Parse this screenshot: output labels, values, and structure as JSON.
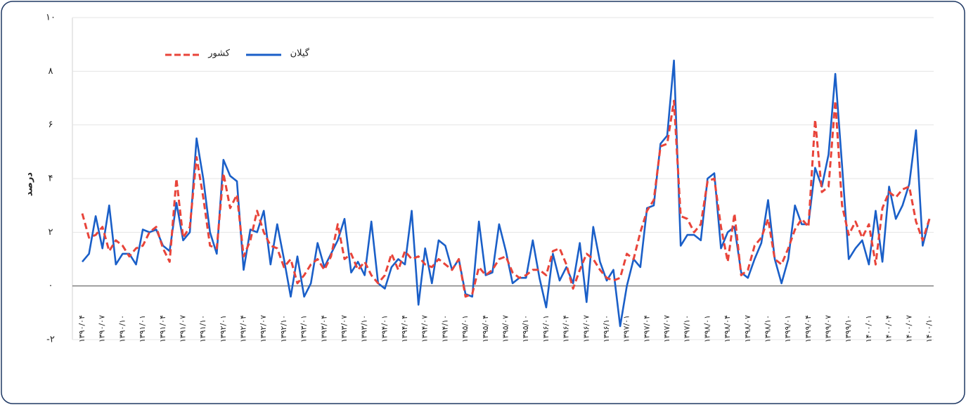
{
  "chart_data": {
    "type": "line",
    "ylabel": "درصد",
    "ylim": [
      -2,
      10
    ],
    "yticks": [
      {
        "value": -2,
        "label": "-۲"
      },
      {
        "value": 0,
        "label": "۰"
      },
      {
        "value": 2,
        "label": "۲"
      },
      {
        "value": 4,
        "label": "۴"
      },
      {
        "value": 6,
        "label": "۶"
      },
      {
        "value": 8,
        "label": "۸"
      },
      {
        "value": 10,
        "label": "۱۰"
      }
    ],
    "grid": true,
    "categories": [
      "۱۳۹۰/۰۴",
      null,
      null,
      "۱۳۹۰/۰۷",
      null,
      null,
      "۱۳۹۰/۱۰",
      null,
      null,
      "۱۳۹۱/۰۱",
      null,
      null,
      "۱۳۹۱/۰۴",
      null,
      null,
      "۱۳۹۱/۰۷",
      null,
      null,
      "۱۳۹۱/۱۰",
      null,
      null,
      "۱۳۹۲/۰۱",
      null,
      null,
      "۱۳۹۲/۰۴",
      null,
      null,
      "۱۳۹۲/۰۷",
      null,
      null,
      "۱۳۹۲/۱۰",
      null,
      null,
      "۱۳۹۳/۰۱",
      null,
      null,
      "۱۳۹۳/۰۴",
      null,
      null,
      "۱۳۹۳/۰۷",
      null,
      null,
      "۱۳۹۳/۱۰",
      null,
      null,
      "۱۳۹۴/۰۱",
      null,
      null,
      "۱۳۹۴/۰۴",
      null,
      null,
      "۱۳۹۴/۰۷",
      null,
      null,
      "۱۳۹۴/۱۰",
      null,
      null,
      "۱۳۹۵/۰۱",
      null,
      null,
      "۱۳۹۵/۰۴",
      null,
      null,
      "۱۳۹۵/۰۷",
      null,
      null,
      "۱۳۹۵/۱۰",
      null,
      null,
      "۱۳۹۶/۰۱",
      null,
      null,
      "۱۳۹۶/۰۴",
      null,
      null,
      "۱۳۹۶/۰۷",
      null,
      null,
      "۱۳۹۶/۱۰",
      null,
      null,
      "۱۳۹۷/۰۱",
      null,
      null,
      "۱۳۹۷/۰۴",
      null,
      null,
      "۱۳۹۷/۰۷",
      null,
      null,
      "۱۳۹۷/۱۰",
      null,
      null,
      "۱۳۹۸/۰۱",
      null,
      null,
      "۱۳۹۸/۰۴",
      null,
      null,
      "۱۳۹۸/۰۷",
      null,
      null,
      "۱۳۹۸/۱۰",
      null,
      null,
      "۱۳۹۹/۰۱",
      null,
      null,
      "۱۳۹۹/۰۴",
      null,
      null,
      "۱۳۹۹/۰۷",
      null,
      null,
      "۱۳۹۹/۱۰",
      null,
      null,
      "۱۴۰۰/۰۱",
      null,
      null,
      "۱۴۰۰/۰۴",
      null,
      null,
      "۱۴۰۰/۰۷",
      null,
      null,
      "۱۴۰۰/۱۰"
    ],
    "series": [
      {
        "name": "گیلان",
        "color": "#1a5fc8",
        "dashed": false,
        "values": [
          0.9,
          1.2,
          2.6,
          1.4,
          3.0,
          0.8,
          1.2,
          1.2,
          0.8,
          2.1,
          2.0,
          2.1,
          1.5,
          1.3,
          3.1,
          1.7,
          2.0,
          5.5,
          4.0,
          2.0,
          1.2,
          4.7,
          4.1,
          3.9,
          0.6,
          2.1,
          2.0,
          2.8,
          0.8,
          2.3,
          1.0,
          -0.4,
          1.1,
          -0.4,
          0.1,
          1.6,
          0.7,
          1.2,
          1.7,
          2.5,
          0.5,
          0.9,
          0.4,
          2.4,
          0.1,
          -0.1,
          0.7,
          1.0,
          0.8,
          2.8,
          -0.7,
          1.4,
          0.1,
          1.7,
          1.5,
          0.6,
          1.0,
          -0.3,
          -0.4,
          2.4,
          0.4,
          0.5,
          2.3,
          1.3,
          0.1,
          0.3,
          0.3,
          1.7,
          0.3,
          -0.8,
          1.2,
          0.2,
          0.7,
          0.1,
          1.6,
          -0.6,
          2.2,
          0.9,
          0.2,
          0.6,
          -1.5,
          0.0,
          1.0,
          0.7,
          2.9,
          3.0,
          5.3,
          5.6,
          8.4,
          1.5,
          1.9,
          1.9,
          1.7,
          4.0,
          4.2,
          1.4,
          2.0,
          2.2,
          0.5,
          0.3,
          1.0,
          1.6,
          3.2,
          1.0,
          0.1,
          1.0,
          3.0,
          2.3,
          2.3,
          4.4,
          3.7,
          4.9,
          7.9,
          4.5,
          1.0,
          1.4,
          1.7,
          0.8,
          2.8,
          0.9,
          3.7,
          2.5,
          3.0,
          3.8,
          5.8,
          1.5,
          2.5
        ]
      },
      {
        "name": "کشور",
        "color": "#e8443a",
        "dashed": true,
        "values": [
          2.7,
          1.8,
          1.9,
          2.2,
          1.3,
          1.7,
          1.5,
          1.1,
          1.4,
          1.5,
          2.0,
          2.2,
          1.4,
          0.9,
          4.0,
          1.8,
          2.2,
          4.8,
          3.3,
          1.5,
          1.4,
          4.2,
          2.9,
          3.4,
          1.1,
          1.7,
          2.8,
          2.0,
          1.5,
          1.4,
          0.7,
          1.0,
          0.1,
          0.4,
          0.8,
          1.0,
          0.6,
          1.1,
          2.3,
          1.0,
          1.2,
          0.6,
          0.9,
          0.4,
          0.1,
          0.4,
          1.2,
          0.6,
          1.3,
          1.0,
          1.1,
          0.8,
          0.7,
          1.0,
          0.8,
          0.6,
          1.0,
          -0.4,
          -0.3,
          0.7,
          0.4,
          0.6,
          1.0,
          1.1,
          0.5,
          0.3,
          0.4,
          0.6,
          0.6,
          0.4,
          1.3,
          1.4,
          0.8,
          -0.1,
          0.6,
          1.2,
          1.0,
          0.6,
          0.3,
          0.2,
          0.3,
          1.2,
          1.0,
          2.0,
          2.8,
          3.2,
          5.2,
          5.3,
          6.9,
          2.6,
          2.5,
          2.0,
          2.3,
          3.9,
          4.0,
          2.2,
          0.9,
          2.7,
          0.4,
          0.6,
          1.5,
          1.8,
          2.5,
          1.0,
          0.8,
          1.4,
          2.1,
          2.5,
          2.2,
          6.2,
          3.5,
          3.7,
          6.9,
          3.0,
          1.9,
          2.4,
          1.8,
          2.3,
          0.8,
          2.9,
          3.5,
          3.3,
          3.6,
          3.7,
          2.4,
          1.7,
          2.5
        ]
      }
    ],
    "legend": "top-left"
  }
}
